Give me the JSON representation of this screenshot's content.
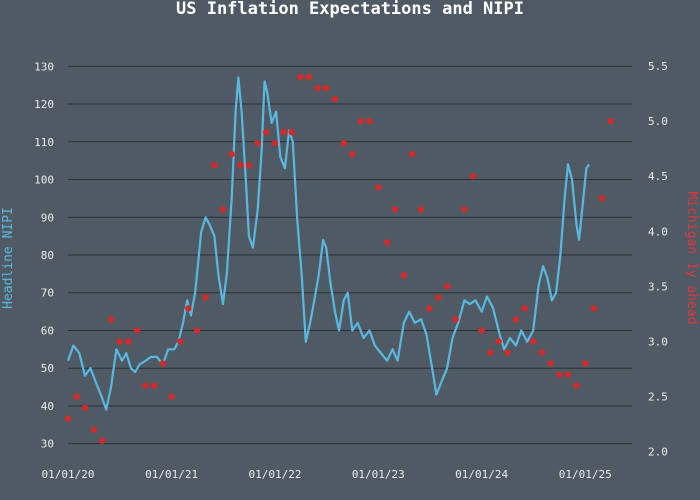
{
  "chart_data": {
    "type": "line",
    "title": "US Inflation Expectations and NIPI",
    "ylabel_left": "Headline NIPI",
    "ylabel_right": "Michigan 1y ahead",
    "x_ticks": [
      "01/01/20",
      "01/01/21",
      "01/01/22",
      "01/01/23",
      "01/01/24",
      "01/01/25"
    ],
    "y_left_ticks": [
      "30",
      "40",
      "50",
      "60",
      "70",
      "80",
      "90",
      "100",
      "110",
      "120",
      "130"
    ],
    "y_right_ticks": [
      "2.0",
      "2.5",
      "3.0",
      "3.5",
      "4.0",
      "4.5",
      "5.0",
      "5.5"
    ],
    "ylim_left": [
      27,
      133
    ],
    "ylim_right": [
      1.97,
      5.6
    ],
    "xlim": [
      "2020-01-01",
      "2025-06-15"
    ],
    "grid": true,
    "colors": {
      "nipi": "#5ab8e0",
      "michigan": "#d12a2a",
      "background": "#4f5a64",
      "grid": "#2a3036"
    },
    "series": [
      {
        "name": "Headline NIPI",
        "axis": "left",
        "style": "line",
        "points": [
          [
            "2020-01-01",
            52
          ],
          [
            "2020-01-20",
            56
          ],
          [
            "2020-02-10",
            54
          ],
          [
            "2020-03-01",
            48
          ],
          [
            "2020-03-20",
            50
          ],
          [
            "2020-04-10",
            46
          ],
          [
            "2020-05-01",
            42
          ],
          [
            "2020-05-15",
            39
          ],
          [
            "2020-06-01",
            45
          ],
          [
            "2020-06-20",
            55
          ],
          [
            "2020-07-10",
            52
          ],
          [
            "2020-07-25",
            54
          ],
          [
            "2020-08-10",
            50
          ],
          [
            "2020-08-25",
            49
          ],
          [
            "2020-09-10",
            51
          ],
          [
            "2020-10-01",
            52
          ],
          [
            "2020-10-20",
            53
          ],
          [
            "2020-11-10",
            53
          ],
          [
            "2020-12-01",
            51
          ],
          [
            "2020-12-20",
            55
          ],
          [
            "2021-01-10",
            55
          ],
          [
            "2021-01-25",
            57
          ],
          [
            "2021-02-10",
            62
          ],
          [
            "2021-02-25",
            68
          ],
          [
            "2021-03-10",
            64
          ],
          [
            "2021-03-25",
            70
          ],
          [
            "2021-04-05",
            78
          ],
          [
            "2021-04-15",
            86
          ],
          [
            "2021-05-01",
            90
          ],
          [
            "2021-05-15",
            88
          ],
          [
            "2021-06-01",
            85
          ],
          [
            "2021-06-15",
            75
          ],
          [
            "2021-07-01",
            67
          ],
          [
            "2021-07-15",
            75
          ],
          [
            "2021-08-01",
            95
          ],
          [
            "2021-08-15",
            118
          ],
          [
            "2021-08-25",
            127
          ],
          [
            "2021-09-05",
            118
          ],
          [
            "2021-09-20",
            100
          ],
          [
            "2021-10-01",
            85
          ],
          [
            "2021-10-15",
            82
          ],
          [
            "2021-11-01",
            92
          ],
          [
            "2021-11-15",
            108
          ],
          [
            "2021-11-25",
            126
          ],
          [
            "2021-12-05",
            123
          ],
          [
            "2021-12-20",
            115
          ],
          [
            "2022-01-05",
            118
          ],
          [
            "2022-01-20",
            106
          ],
          [
            "2022-02-05",
            103
          ],
          [
            "2022-02-20",
            113
          ],
          [
            "2022-03-05",
            110
          ],
          [
            "2022-03-20",
            90
          ],
          [
            "2022-04-05",
            75
          ],
          [
            "2022-04-20",
            57
          ],
          [
            "2022-05-05",
            62
          ],
          [
            "2022-05-20",
            68
          ],
          [
            "2022-06-05",
            75
          ],
          [
            "2022-06-20",
            84
          ],
          [
            "2022-07-01",
            82
          ],
          [
            "2022-07-15",
            73
          ],
          [
            "2022-08-01",
            65
          ],
          [
            "2022-08-15",
            60
          ],
          [
            "2022-09-01",
            68
          ],
          [
            "2022-09-15",
            70
          ],
          [
            "2022-10-01",
            60
          ],
          [
            "2022-10-20",
            62
          ],
          [
            "2022-11-10",
            58
          ],
          [
            "2022-12-01",
            60
          ],
          [
            "2022-12-20",
            56
          ],
          [
            "2023-01-10",
            54
          ],
          [
            "2023-02-01",
            52
          ],
          [
            "2023-02-20",
            55
          ],
          [
            "2023-03-10",
            52
          ],
          [
            "2023-04-01",
            62
          ],
          [
            "2023-04-20",
            65
          ],
          [
            "2023-05-10",
            62
          ],
          [
            "2023-06-01",
            63
          ],
          [
            "2023-06-20",
            59
          ],
          [
            "2023-07-10",
            50
          ],
          [
            "2023-07-25",
            43
          ],
          [
            "2023-08-10",
            46
          ],
          [
            "2023-09-01",
            50
          ],
          [
            "2023-09-20",
            58
          ],
          [
            "2023-10-10",
            62
          ],
          [
            "2023-11-01",
            68
          ],
          [
            "2023-11-20",
            67
          ],
          [
            "2023-12-10",
            68
          ],
          [
            "2024-01-01",
            65
          ],
          [
            "2024-01-20",
            69
          ],
          [
            "2024-02-10",
            66
          ],
          [
            "2024-03-01",
            60
          ],
          [
            "2024-03-20",
            55
          ],
          [
            "2024-04-10",
            58
          ],
          [
            "2024-05-01",
            56
          ],
          [
            "2024-05-20",
            60
          ],
          [
            "2024-06-10",
            57
          ],
          [
            "2024-07-01",
            60
          ],
          [
            "2024-07-20",
            72
          ],
          [
            "2024-08-05",
            77
          ],
          [
            "2024-08-20",
            74
          ],
          [
            "2024-09-05",
            68
          ],
          [
            "2024-09-20",
            70
          ],
          [
            "2024-10-05",
            80
          ],
          [
            "2024-10-20",
            95
          ],
          [
            "2024-11-01",
            104
          ],
          [
            "2024-11-15",
            100
          ],
          [
            "2024-12-01",
            88
          ],
          [
            "2024-12-10",
            84
          ],
          [
            "2024-12-25",
            95
          ],
          [
            "2025-01-05",
            103
          ],
          [
            "2025-01-15",
            104
          ]
        ]
      },
      {
        "name": "Michigan 1y ahead",
        "axis": "right",
        "style": "markers",
        "points": [
          [
            "2020-01-01",
            2.3
          ],
          [
            "2020-02-01",
            2.5
          ],
          [
            "2020-03-01",
            2.4
          ],
          [
            "2020-04-01",
            2.2
          ],
          [
            "2020-05-01",
            2.1
          ],
          [
            "2020-06-01",
            3.2
          ],
          [
            "2020-07-01",
            3.0
          ],
          [
            "2020-08-01",
            3.0
          ],
          [
            "2020-09-01",
            3.1
          ],
          [
            "2020-10-01",
            2.6
          ],
          [
            "2020-11-01",
            2.6
          ],
          [
            "2020-12-01",
            2.8
          ],
          [
            "2021-01-01",
            2.5
          ],
          [
            "2021-02-01",
            3.0
          ],
          [
            "2021-03-01",
            3.3
          ],
          [
            "2021-04-01",
            3.1
          ],
          [
            "2021-05-01",
            3.4
          ],
          [
            "2021-06-01",
            4.6
          ],
          [
            "2021-07-01",
            4.2
          ],
          [
            "2021-08-01",
            4.7
          ],
          [
            "2021-09-01",
            4.6
          ],
          [
            "2021-10-01",
            4.6
          ],
          [
            "2021-11-01",
            4.8
          ],
          [
            "2021-12-01",
            4.9
          ],
          [
            "2022-01-01",
            4.8
          ],
          [
            "2022-02-01",
            4.9
          ],
          [
            "2022-03-01",
            4.9
          ],
          [
            "2022-04-01",
            5.4
          ],
          [
            "2022-05-01",
            5.4
          ],
          [
            "2022-06-01",
            5.3
          ],
          [
            "2022-07-01",
            5.3
          ],
          [
            "2022-08-01",
            5.2
          ],
          [
            "2022-09-01",
            4.8
          ],
          [
            "2022-10-01",
            4.7
          ],
          [
            "2022-11-01",
            5.0
          ],
          [
            "2022-12-01",
            5.0
          ],
          [
            "2023-01-01",
            4.4
          ],
          [
            "2023-02-01",
            3.9
          ],
          [
            "2023-03-01",
            4.2
          ],
          [
            "2023-04-01",
            3.6
          ],
          [
            "2023-05-01",
            4.7
          ],
          [
            "2023-06-01",
            4.2
          ],
          [
            "2023-07-01",
            3.3
          ],
          [
            "2023-08-01",
            3.4
          ],
          [
            "2023-09-01",
            3.5
          ],
          [
            "2023-10-01",
            3.2
          ],
          [
            "2023-11-01",
            4.2
          ],
          [
            "2023-12-01",
            4.5
          ],
          [
            "2024-01-01",
            3.1
          ],
          [
            "2024-02-01",
            2.9
          ],
          [
            "2024-03-01",
            3.0
          ],
          [
            "2024-04-01",
            2.9
          ],
          [
            "2024-05-01",
            3.2
          ],
          [
            "2024-06-01",
            3.3
          ],
          [
            "2024-07-01",
            3.0
          ],
          [
            "2024-08-01",
            2.9
          ],
          [
            "2024-09-01",
            2.8
          ],
          [
            "2024-10-01",
            2.7
          ],
          [
            "2024-11-01",
            2.7
          ],
          [
            "2024-12-01",
            2.6
          ],
          [
            "2025-01-01",
            2.8
          ],
          [
            "2025-02-01",
            3.3
          ],
          [
            "2025-03-01",
            4.3
          ],
          [
            "2025-04-01",
            5.0
          ]
        ]
      }
    ]
  }
}
